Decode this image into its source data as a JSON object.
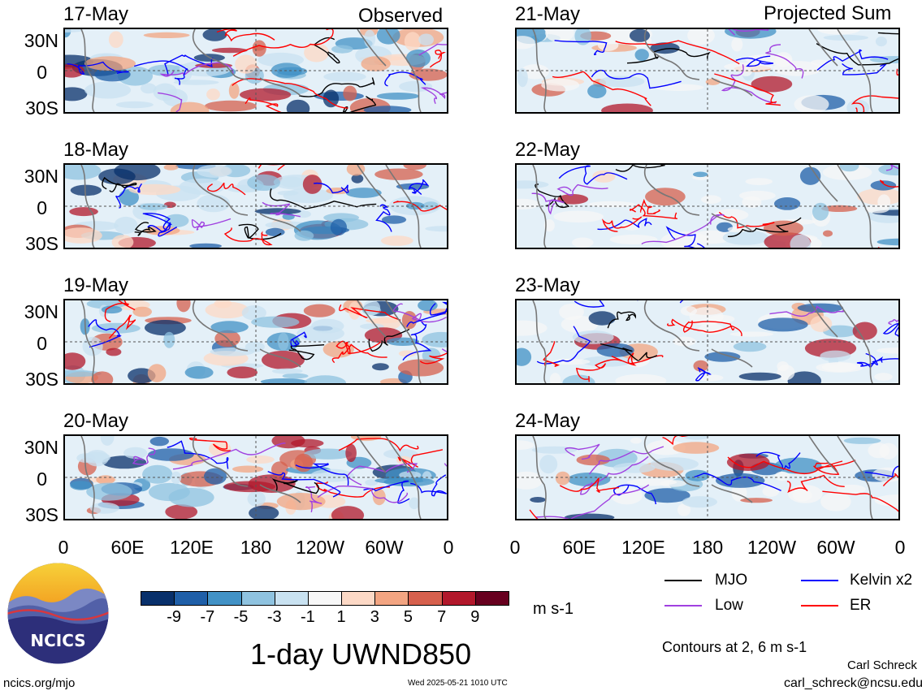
{
  "headers": {
    "observed": "Observed",
    "projected": "Projected Sum"
  },
  "panels": [
    {
      "date": "17-May"
    },
    {
      "date": "18-May"
    },
    {
      "date": "19-May"
    },
    {
      "date": "20-May"
    },
    {
      "date": "21-May"
    },
    {
      "date": "22-May"
    },
    {
      "date": "23-May"
    },
    {
      "date": "24-May"
    }
  ],
  "lat_labels": [
    "30N",
    "0",
    "30S"
  ],
  "lon_labels": [
    "0",
    "60E",
    "120E",
    "180",
    "120W",
    "60W",
    "0"
  ],
  "colorbar": {
    "colors": [
      "#08306b",
      "#1f5fa8",
      "#4292c6",
      "#8fc3e0",
      "#c9e2f1",
      "#f7f7f7",
      "#fdd9c6",
      "#f3a582",
      "#d6604d",
      "#b2182b",
      "#67001f"
    ],
    "ticks": [
      "-9",
      "-7",
      "-5",
      "-3",
      "-1",
      "1",
      "3",
      "5",
      "7",
      "9"
    ],
    "units": "m s-1"
  },
  "legend": [
    {
      "label": "MJO",
      "color": "#000000"
    },
    {
      "label": "Kelvin x2",
      "color": "#0000ff"
    },
    {
      "label": "Low",
      "color": "#a040e0"
    },
    {
      "label": "ER",
      "color": "#ff0000"
    }
  ],
  "title": "1-day UWND850",
  "contours_note": "Contours at 2, 6 m s-1",
  "logo_text": "NCICS",
  "footer": {
    "url": "ncics.org/mjo",
    "timestamp": "Wed 2025-05-21 1010 UTC",
    "author": "Carl Schreck",
    "email": "carl_schreck@ncsu.edu"
  }
}
